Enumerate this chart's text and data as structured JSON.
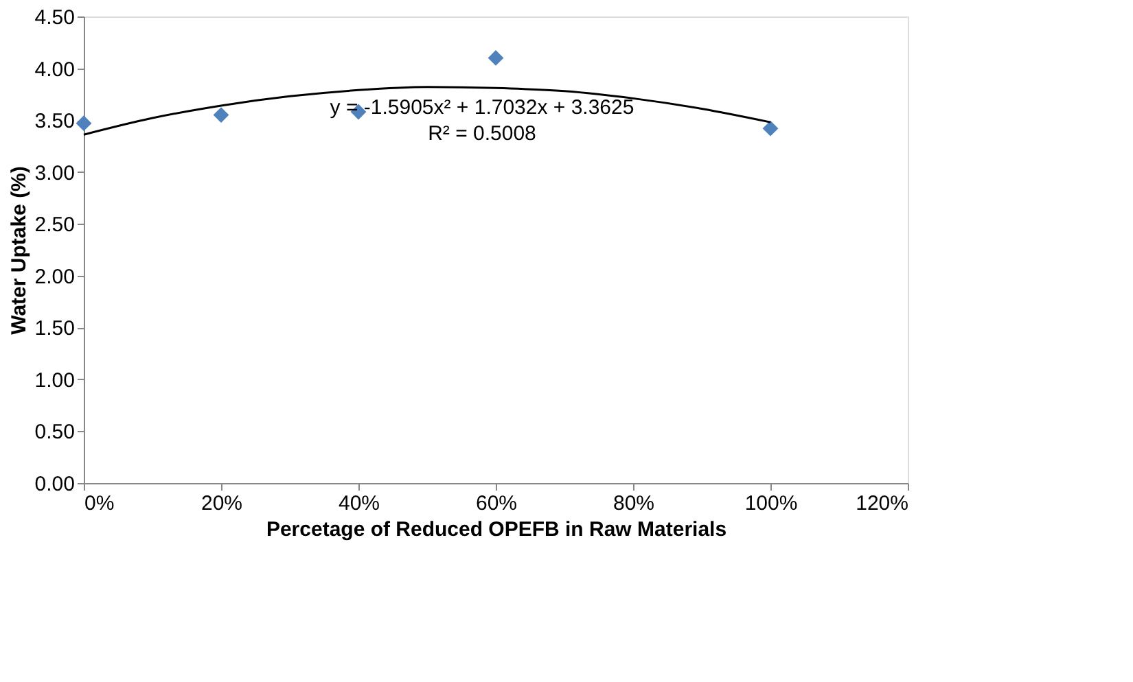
{
  "chart_data": {
    "type": "scatter",
    "xlabel": "Percetage of Reduced OPEFB in Raw Materials",
    "ylabel": "Water Uptake (%)",
    "xlim": [
      0,
      120
    ],
    "xticks": [
      {
        "value": 0,
        "label": "0%"
      },
      {
        "value": 20,
        "label": "20%"
      },
      {
        "value": 40,
        "label": "40%"
      },
      {
        "value": 60,
        "label": "60%"
      },
      {
        "value": 80,
        "label": "80%"
      },
      {
        "value": 100,
        "label": "100%"
      },
      {
        "value": 120,
        "label": "120%"
      }
    ],
    "ylim": [
      0,
      4.5
    ],
    "yticks": [
      {
        "value": 0,
        "label": "0.00"
      },
      {
        "value": 0.5,
        "label": "0.50"
      },
      {
        "value": 1,
        "label": "1.00"
      },
      {
        "value": 1.5,
        "label": "1.50"
      },
      {
        "value": 2,
        "label": "2.00"
      },
      {
        "value": 2.5,
        "label": "2.50"
      },
      {
        "value": 3,
        "label": "3.00"
      },
      {
        "value": 3.5,
        "label": "3.50"
      },
      {
        "value": 4,
        "label": "4.00"
      },
      {
        "value": 4.5,
        "label": "4.50"
      }
    ],
    "grid": false,
    "legend": false,
    "series": [
      {
        "color": "#4f81bd",
        "marker": "diamond",
        "x": [
          0,
          20,
          40,
          60,
          100
        ],
        "values": [
          3.47,
          3.55,
          3.58,
          4.1,
          3.42
        ]
      },
      {
        "type": "line",
        "color": "#000000",
        "line_style": "solid",
        "marker": "none",
        "x": [
          0,
          10,
          20,
          30,
          40,
          50,
          60,
          70,
          80,
          90,
          100
        ],
        "values": [
          3.36,
          3.52,
          3.64,
          3.73,
          3.79,
          3.82,
          3.81,
          3.78,
          3.71,
          3.61,
          3.48
        ]
      }
    ],
    "annotations": [
      "y = -1.5905x² + 1.7032x + 3.3625",
      "R² = 0.5008"
    ]
  }
}
